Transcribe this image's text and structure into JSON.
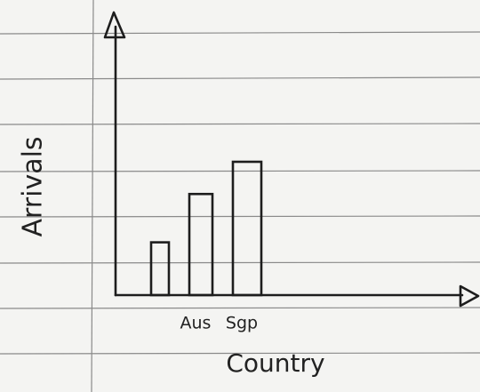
{
  "chart_data": {
    "type": "bar",
    "x_label": "Country",
    "y_label": "Arrivals",
    "categories": [
      null,
      "Aus",
      "Sgp"
    ],
    "values": [
      59,
      113,
      149
    ],
    "ylim": [
      0,
      300
    ],
    "color": "#1d1d1d",
    "grid": false
  }
}
